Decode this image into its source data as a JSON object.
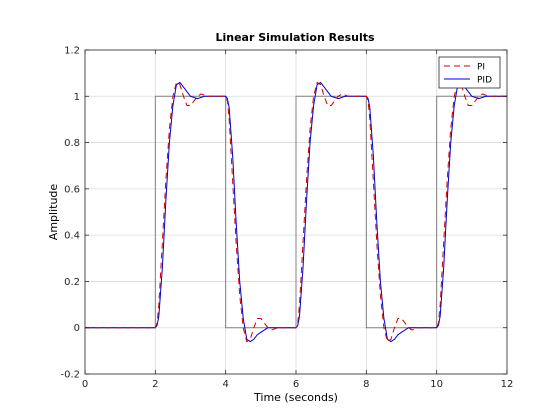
{
  "chart_data": {
    "type": "line",
    "title": "Linear Simulation Results",
    "xlabel": "Time (seconds)",
    "ylabel": "Amplitude",
    "xlim": [
      0,
      12
    ],
    "ylim": [
      -0.2,
      1.2
    ],
    "xticks": [
      0,
      2,
      4,
      6,
      8,
      10,
      12
    ],
    "yticks": [
      -0.2,
      0,
      0.2,
      0.4,
      0.6,
      0.8,
      1,
      1.2
    ],
    "xtick_labels": [
      "0",
      "2",
      "4",
      "6",
      "8",
      "10",
      "12"
    ],
    "ytick_labels": [
      "-0.2",
      "0",
      "0.2",
      "0.4",
      "0.6",
      "0.8",
      "1",
      "1.2"
    ],
    "grid": true,
    "legend_position": "top-right",
    "input_signal": {
      "color": "#808080",
      "x": [
        0,
        2,
        2,
        4,
        4,
        6,
        6,
        8,
        8,
        10,
        10,
        12
      ],
      "y": [
        0,
        0,
        1,
        1,
        0,
        0,
        1,
        1,
        0,
        0,
        1,
        1
      ]
    },
    "series": [
      {
        "name": "PI",
        "color": "#d40000",
        "style": "dashed",
        "x": [
          0,
          2.0,
          2.05,
          2.1,
          2.2,
          2.3,
          2.4,
          2.5,
          2.6,
          2.7,
          2.8,
          2.9,
          3.0,
          3.1,
          3.2,
          3.3,
          3.5,
          3.7,
          4.0,
          4.05,
          4.1,
          4.2,
          4.3,
          4.4,
          4.5,
          4.6,
          4.7,
          4.8,
          4.9,
          5.0,
          5.1,
          5.2,
          5.3,
          5.5,
          5.7,
          6.0,
          6.05,
          6.1,
          6.2,
          6.3,
          6.4,
          6.5,
          6.6,
          6.7,
          6.8,
          6.9,
          7.0,
          7.1,
          7.2,
          7.3,
          7.5,
          7.7,
          8.0,
          8.05,
          8.1,
          8.2,
          8.3,
          8.4,
          8.5,
          8.6,
          8.7,
          8.8,
          8.9,
          9.0,
          9.1,
          9.2,
          9.3,
          9.5,
          9.7,
          10.0,
          10.05,
          10.1,
          10.2,
          10.3,
          10.4,
          10.5,
          10.6,
          10.7,
          10.8,
          10.9,
          11.0,
          11.1,
          11.2,
          11.3,
          11.5,
          11.7,
          12.0
        ],
        "y": [
          0,
          0,
          0.02,
          0.1,
          0.37,
          0.64,
          0.86,
          1.0,
          1.06,
          1.05,
          1.0,
          0.96,
          0.96,
          0.98,
          1.0,
          1.01,
          1.0,
          1.0,
          1.0,
          0.98,
          0.9,
          0.63,
          0.36,
          0.14,
          0.0,
          -0.06,
          -0.05,
          0.0,
          0.04,
          0.04,
          0.02,
          0.0,
          -0.01,
          0.0,
          0.0,
          0.0,
          0.02,
          0.1,
          0.37,
          0.64,
          0.86,
          1.0,
          1.06,
          1.05,
          1.0,
          0.96,
          0.96,
          0.98,
          1.0,
          1.01,
          1.0,
          1.0,
          1.0,
          0.98,
          0.9,
          0.63,
          0.36,
          0.14,
          0.0,
          -0.06,
          -0.05,
          0.0,
          0.04,
          0.04,
          0.02,
          0.0,
          -0.01,
          0.0,
          0.0,
          0.0,
          0.02,
          0.1,
          0.37,
          0.64,
          0.86,
          1.0,
          1.06,
          1.05,
          1.0,
          0.96,
          0.96,
          0.98,
          1.0,
          1.01,
          1.0,
          1.0,
          1.0
        ]
      },
      {
        "name": "PID",
        "color": "#0000cc",
        "style": "solid",
        "x": [
          0,
          2.0,
          2.05,
          2.1,
          2.2,
          2.3,
          2.4,
          2.5,
          2.6,
          2.7,
          2.8,
          2.9,
          3.0,
          3.2,
          3.4,
          3.6,
          3.8,
          4.0,
          4.05,
          4.1,
          4.2,
          4.3,
          4.4,
          4.5,
          4.6,
          4.7,
          4.8,
          4.9,
          5.0,
          5.2,
          5.4,
          5.6,
          5.8,
          6.0,
          6.05,
          6.1,
          6.2,
          6.3,
          6.4,
          6.5,
          6.6,
          6.7,
          6.8,
          6.9,
          7.0,
          7.2,
          7.4,
          7.6,
          7.8,
          8.0,
          8.05,
          8.1,
          8.2,
          8.3,
          8.4,
          8.5,
          8.6,
          8.7,
          8.8,
          8.9,
          9.0,
          9.2,
          9.4,
          9.6,
          9.8,
          10.0,
          10.05,
          10.1,
          10.2,
          10.3,
          10.4,
          10.5,
          10.6,
          10.7,
          10.8,
          10.9,
          11.0,
          11.2,
          11.4,
          11.6,
          11.8,
          12.0
        ],
        "y": [
          0,
          0,
          0.01,
          0.05,
          0.26,
          0.55,
          0.8,
          0.96,
          1.05,
          1.06,
          1.04,
          1.02,
          1.0,
          0.99,
          1.0,
          1.0,
          1.0,
          1.0,
          0.99,
          0.95,
          0.74,
          0.45,
          0.2,
          0.04,
          -0.05,
          -0.06,
          -0.05,
          -0.03,
          -0.02,
          0.0,
          0.0,
          0.0,
          0.0,
          0.0,
          0.01,
          0.05,
          0.26,
          0.55,
          0.8,
          0.96,
          1.05,
          1.06,
          1.04,
          1.02,
          1.0,
          0.99,
          1.0,
          1.0,
          1.0,
          1.0,
          0.99,
          0.95,
          0.74,
          0.45,
          0.2,
          0.04,
          -0.05,
          -0.06,
          -0.05,
          -0.03,
          -0.02,
          0.0,
          0.0,
          0.0,
          0.0,
          0.0,
          0.01,
          0.05,
          0.26,
          0.55,
          0.8,
          0.96,
          1.05,
          1.06,
          1.04,
          1.02,
          1.0,
          0.99,
          1.0,
          1.0,
          1.0,
          1.0
        ]
      }
    ]
  }
}
